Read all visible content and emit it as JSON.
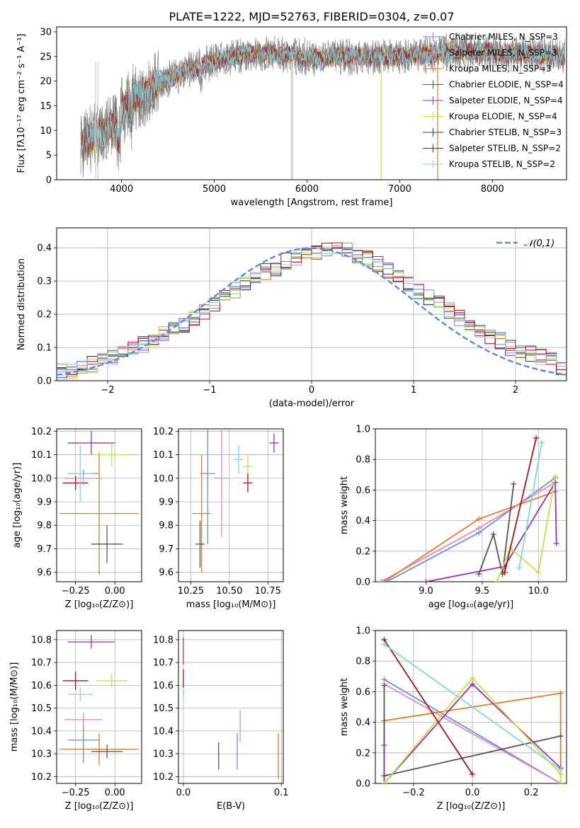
{
  "figure_title": "PLATE=1222, MJD=52763, FIBERID=0304, z=0.07",
  "colors": {
    "blue": "#6a8fdc",
    "orange": "#e07b2a",
    "dark": "#555555",
    "purple": "#9b30b8",
    "lime": "#c8e040",
    "darkred": "#aa1515",
    "cyan": "#7fd8dc",
    "pink": "#e88ab8",
    "grey": "#808080",
    "dashed": "#5b8fd6"
  },
  "chart_data": [
    {
      "id": "spectrum",
      "type": "line",
      "title": "PLATE=1222, MJD=52763, FIBERID=0304, z=0.07",
      "xlabel": "wavelength [Angstrom, rest frame]",
      "ylabel": "Flux [fλ10⁻¹⁷ erg cm⁻² s⁻¹ A⁻¹]",
      "xlim": [
        3300,
        8800
      ],
      "ylim": [
        0,
        31
      ],
      "xticks": [
        4000,
        5000,
        6000,
        7000,
        8000
      ],
      "yticks": [
        0,
        5,
        10,
        15,
        20,
        25,
        30
      ],
      "legend_position": "right",
      "series": [
        {
          "name": "Chabrier MILES, N_SSP=3",
          "color": "#6a8fdc"
        },
        {
          "name": "Salpeter MILES, N_SSP=3",
          "color": "#e88ab8"
        },
        {
          "name": "Kroupa MILES, N_SSP=3",
          "color": "#e07b2a"
        },
        {
          "name": "Chabrier ELODIE, N_SSP=4",
          "color": "#555555"
        },
        {
          "name": "Salpeter ELODIE, N_SSP=4",
          "color": "#9b30b8"
        },
        {
          "name": "Kroupa ELODIE, N_SSP=4",
          "color": "#c8e040"
        },
        {
          "name": "Chabrier STELIB, N_SSP=3",
          "color": "#3a3a3a"
        },
        {
          "name": "Salpeter STELIB, N_SSP=2",
          "color": "#aa1515"
        },
        {
          "name": "Kroupa STELIB, N_SSP=2",
          "color": "#7fd8dc"
        }
      ],
      "continuum": {
        "x": [
          3560,
          3700,
          3800,
          3900,
          4000,
          4100,
          4200,
          4300,
          4500,
          4700,
          4900,
          5100,
          5300,
          5500,
          5700,
          5900,
          6100,
          6300,
          6500,
          6700,
          6900,
          7100,
          7300,
          7500,
          7700,
          7900,
          8100,
          8300,
          8500,
          8700,
          8800
        ],
        "y": [
          7,
          8.5,
          9.5,
          11,
          14,
          16,
          17,
          18.5,
          20.5,
          22,
          23.5,
          24.5,
          25.5,
          25.5,
          25.5,
          25,
          24.5,
          25,
          25,
          25,
          25,
          25.2,
          25.5,
          25.8,
          26,
          26,
          25.6,
          25.6,
          25.4,
          25.2,
          25.2
        ]
      }
    },
    {
      "id": "residuals",
      "type": "bar",
      "xlabel": "(data-model)/error",
      "ylabel": "Normed distribution",
      "xlim": [
        -2.5,
        2.5
      ],
      "ylim": [
        0,
        0.46
      ],
      "xticks": [
        -2,
        -1,
        0,
        1,
        2
      ],
      "yticks": [
        0.0,
        0.1,
        0.2,
        0.3,
        0.4
      ],
      "legend": "𝒩(0,1)",
      "legend_position": "top-right",
      "bin_start": -2.5,
      "bin_width": 0.1,
      "bin_values": [
        0.03,
        0.03,
        0.04,
        0.05,
        0.06,
        0.07,
        0.08,
        0.1,
        0.11,
        0.12,
        0.14,
        0.16,
        0.17,
        0.19,
        0.21,
        0.23,
        0.25,
        0.27,
        0.29,
        0.31,
        0.33,
        0.34,
        0.36,
        0.37,
        0.38,
        0.39,
        0.4,
        0.4,
        0.39,
        0.38,
        0.37,
        0.35,
        0.33,
        0.31,
        0.29,
        0.27,
        0.25,
        0.23,
        0.21,
        0.19,
        0.17,
        0.15,
        0.13,
        0.12,
        0.1,
        0.09,
        0.08,
        0.07,
        0.06,
        0.04
      ]
    },
    {
      "id": "age-vs-Z",
      "type": "scatter",
      "xlabel": "Z [log₁₀(Z/Z⊙)]",
      "ylabel": "age  [log₁₀(age/yr)]",
      "xlim": [
        -0.37,
        0.17
      ],
      "ylim": [
        9.56,
        10.21
      ],
      "xticks": [
        -0.25,
        0.0
      ],
      "yticks": [
        9.6,
        9.7,
        9.8,
        9.9,
        10.0,
        10.1,
        10.2
      ],
      "points": [
        {
          "x": -0.2,
          "xerr": 0.1,
          "y": 10.02,
          "yerr": 0.0,
          "color": "#6a8fdc"
        },
        {
          "x": -0.2,
          "xerr": 0.12,
          "y": 10.0,
          "yerr": 0.0,
          "color": "#e88ab8"
        },
        {
          "x": -0.1,
          "xerr": 0.25,
          "y": 9.85,
          "yerr": 0.26,
          "color": "#e07b2a"
        },
        {
          "x": -0.05,
          "xerr": 0.1,
          "y": 9.72,
          "yerr": 0.08,
          "color": "#555555"
        },
        {
          "x": -0.15,
          "xerr": 0.15,
          "y": 10.15,
          "yerr": 0.05,
          "color": "#9b30b8"
        },
        {
          "x": -0.02,
          "xerr": 0.1,
          "y": 10.1,
          "yerr": 0.05,
          "color": "#c8e040"
        },
        {
          "x": -0.25,
          "xerr": 0.08,
          "y": 9.98,
          "yerr": 0.03,
          "color": "#aa1515"
        },
        {
          "x": -0.22,
          "xerr": 0.08,
          "y": 10.02,
          "yerr": 0.12,
          "color": "#7fd8dc"
        }
      ]
    },
    {
      "id": "age-vs-mass",
      "type": "scatter",
      "xlabel": "mass [log₁₀(M/M⊙)]",
      "ylabel": "",
      "xlim": [
        10.17,
        10.85
      ],
      "ylim": [
        9.56,
        10.21
      ],
      "xticks": [
        10.25,
        10.5,
        10.75
      ],
      "yticks": [
        9.6,
        9.7,
        9.8,
        9.9,
        10.0,
        10.1,
        10.2
      ],
      "points": [
        {
          "x": 10.36,
          "xerr": 0.05,
          "y": 10.02,
          "yerr": 0.3,
          "color": "#6a8fdc"
        },
        {
          "x": 10.45,
          "xerr": 0.05,
          "y": 10.0,
          "yerr": 0.25,
          "color": "#e88ab8"
        },
        {
          "x": 10.32,
          "xerr": 0.06,
          "y": 9.85,
          "yerr": 0.25,
          "color": "#e07b2a"
        },
        {
          "x": 10.31,
          "xerr": 0.03,
          "y": 9.72,
          "yerr": 0.1,
          "color": "#555555"
        },
        {
          "x": 10.79,
          "xerr": 0.03,
          "y": 10.15,
          "yerr": 0.04,
          "color": "#9b30b8"
        },
        {
          "x": 10.62,
          "xerr": 0.03,
          "y": 10.05,
          "yerr": 0.05,
          "color": "#c8e040"
        },
        {
          "x": 10.62,
          "xerr": 0.03,
          "y": 9.98,
          "yerr": 0.04,
          "color": "#aa1515"
        },
        {
          "x": 10.56,
          "xerr": 0.03,
          "y": 10.08,
          "yerr": 0.06,
          "color": "#7fd8dc"
        }
      ]
    },
    {
      "id": "weight-vs-age",
      "type": "line",
      "xlabel": "age  [log₁₀(age/yr)]",
      "ylabel": "mass weight",
      "xlim": [
        8.55,
        10.25
      ],
      "ylim": [
        0,
        1
      ],
      "xticks": [
        9.0,
        9.5,
        10.0
      ],
      "yticks": [
        0.0,
        0.2,
        0.4,
        0.6,
        0.8,
        1.0
      ],
      "grid": true,
      "series": [
        {
          "color": "#6a8fdc",
          "x": [
            8.65,
            9.47,
            10.15
          ],
          "y": [
            0.0,
            0.32,
            0.68
          ]
        },
        {
          "color": "#e88ab8",
          "x": [
            8.6,
            9.47,
            10.15
          ],
          "y": [
            0.0,
            0.35,
            0.65
          ]
        },
        {
          "color": "#e07b2a",
          "x": [
            8.63,
            9.47,
            10.15
          ],
          "y": [
            0.0,
            0.41,
            0.59
          ]
        },
        {
          "color": "#555555",
          "x": [
            9.47,
            9.6,
            9.68,
            9.78
          ],
          "y": [
            0.05,
            0.31,
            0.05,
            0.64
          ]
        },
        {
          "color": "#9b30b8",
          "x": [
            9.0,
            9.7,
            10.15,
            10.16
          ],
          "y": [
            0.0,
            0.1,
            0.65,
            0.25
          ]
        },
        {
          "color": "#c8e040",
          "x": [
            9.63,
            9.75,
            10.0,
            10.15
          ],
          "y": [
            0.0,
            0.22,
            0.06,
            0.69
          ]
        },
        {
          "color": "#aa1515",
          "x": [
            9.7,
            9.98
          ],
          "y": [
            0.06,
            0.94
          ]
        },
        {
          "color": "#7fd8dc",
          "x": [
            9.83,
            10.03
          ],
          "y": [
            0.09,
            0.91
          ]
        }
      ]
    },
    {
      "id": "mass-vs-Z",
      "type": "scatter",
      "xlabel": "Z [log₁₀(Z/Z⊙)]",
      "ylabel": "mass [log₁₀(M/M⊙)]",
      "xlim": [
        -0.37,
        0.17
      ],
      "ylim": [
        10.17,
        10.84
      ],
      "xticks": [
        -0.25,
        0.0
      ],
      "yticks": [
        10.2,
        10.3,
        10.4,
        10.5,
        10.6,
        10.7,
        10.8
      ],
      "points": [
        {
          "x": -0.2,
          "xerr": 0.1,
          "y": 10.36,
          "yerr": 0.1,
          "color": "#6a8fdc"
        },
        {
          "x": -0.2,
          "xerr": 0.12,
          "y": 10.45,
          "yerr": 0.03,
          "color": "#e88ab8"
        },
        {
          "x": -0.1,
          "xerr": 0.25,
          "y": 10.32,
          "yerr": 0.07,
          "color": "#e07b2a"
        },
        {
          "x": -0.05,
          "xerr": 0.1,
          "y": 10.31,
          "yerr": 0.03,
          "color": "#555555"
        },
        {
          "x": -0.15,
          "xerr": 0.15,
          "y": 10.79,
          "yerr": 0.03,
          "color": "#9b30b8"
        },
        {
          "x": -0.02,
          "xerr": 0.1,
          "y": 10.62,
          "yerr": 0.03,
          "color": "#c8e040"
        },
        {
          "x": -0.25,
          "xerr": 0.08,
          "y": 10.62,
          "yerr": 0.04,
          "color": "#aa1515"
        },
        {
          "x": -0.22,
          "xerr": 0.08,
          "y": 10.56,
          "yerr": 0.03,
          "color": "#7fd8dc"
        }
      ]
    },
    {
      "id": "mass-vs-ebv",
      "type": "scatter",
      "xlabel": "E(B-V)",
      "ylabel": "",
      "xlim": [
        -0.005,
        0.102
      ],
      "ylim": [
        10.17,
        10.84
      ],
      "xticks": [
        0.0,
        0.1
      ],
      "yticks": [
        10.2,
        10.3,
        10.4,
        10.5,
        10.6,
        10.7,
        10.8
      ],
      "points": [
        {
          "x": 0.055,
          "y": 10.31,
          "yerr": 0.08,
          "color": "#6a8fdc"
        },
        {
          "x": 0.058,
          "y": 10.42,
          "yerr": 0.07,
          "color": "#e88ab8"
        },
        {
          "x": 0.097,
          "y": 10.29,
          "yerr": 0.1,
          "color": "#e07b2a"
        },
        {
          "x": 0.036,
          "y": 10.29,
          "yerr": 0.06,
          "color": "#555555"
        },
        {
          "x": 0.0,
          "y": 10.75,
          "yerr": 0.06,
          "color": "#9b30b8"
        },
        {
          "x": 0.0,
          "y": 10.6,
          "yerr": 0.04,
          "color": "#c8e040"
        },
        {
          "x": 0.0,
          "y": 10.63,
          "yerr": 0.04,
          "color": "#aa1515"
        },
        {
          "x": 0.0,
          "y": 10.56,
          "yerr": 0.02,
          "color": "#7fd8dc"
        }
      ]
    },
    {
      "id": "weight-vs-Z",
      "type": "line",
      "xlabel": "Z [log₁₀(Z/Z⊙)]",
      "ylabel": "mass weight",
      "xlim": [
        -0.33,
        0.32
      ],
      "ylim": [
        0,
        1
      ],
      "xticks": [
        -0.2,
        0.0,
        0.2
      ],
      "yticks": [
        0.0,
        0.2,
        0.4,
        0.6,
        0.8,
        1.0
      ],
      "grid": true,
      "series": [
        {
          "color": "#6a8fdc",
          "x": [
            -0.3,
            0.3
          ],
          "y": [
            0.68,
            0.0
          ]
        },
        {
          "color": "#e88ab8",
          "x": [
            -0.3,
            0.3
          ],
          "y": [
            0.65,
            0.0
          ]
        },
        {
          "color": "#e07b2a",
          "x": [
            -0.3,
            -0.3,
            0.3,
            0.3
          ],
          "y": [
            0.0,
            0.41,
            0.59,
            0.0
          ]
        },
        {
          "color": "#555555",
          "x": [
            -0.3,
            -0.3,
            0.3
          ],
          "y": [
            0.64,
            0.05,
            0.31
          ]
        },
        {
          "color": "#9b30b8",
          "x": [
            -0.3,
            -0.3,
            0.0,
            0.3
          ],
          "y": [
            0.25,
            0.0,
            0.65,
            0.1
          ]
        },
        {
          "color": "#c8e040",
          "x": [
            -0.3,
            0.0,
            0.3,
            0.3
          ],
          "y": [
            0.0,
            0.69,
            0.06,
            0.0
          ]
        },
        {
          "color": "#aa1515",
          "x": [
            -0.3,
            0.0
          ],
          "y": [
            0.94,
            0.06
          ]
        },
        {
          "color": "#7fd8dc",
          "x": [
            -0.3,
            0.3
          ],
          "y": [
            0.91,
            0.09
          ]
        }
      ]
    }
  ]
}
